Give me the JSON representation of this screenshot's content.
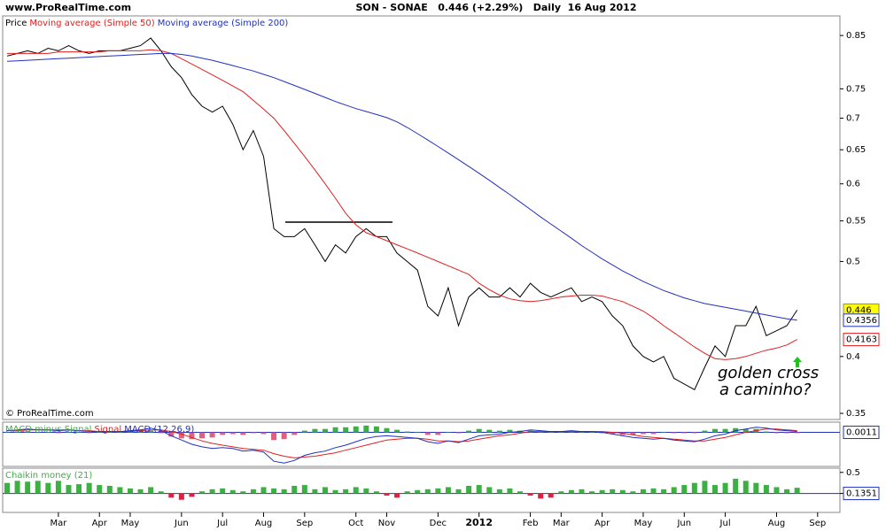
{
  "header": {
    "site": "www.ProRealTime.com",
    "quote": "SON - SONAE   0.446 (+2.29%)   Daily  16 Aug 2012",
    "copyright": "© ProRealTime.com"
  },
  "chart_data": [
    {
      "type": "line",
      "log_scale": true,
      "grid": false,
      "annotations": [
        "golden cross",
        "a caminho?"
      ],
      "categories": [
        null,
        null,
        null,
        null,
        null,
        "Mar",
        null,
        null,
        null,
        "Apr",
        null,
        null,
        "May",
        null,
        null,
        null,
        null,
        "Jun",
        null,
        null,
        null,
        "Jul",
        null,
        null,
        null,
        "Aug",
        null,
        null,
        null,
        "Sep",
        null,
        null,
        null,
        null,
        "Oct",
        null,
        null,
        "Nov",
        null,
        null,
        null,
        null,
        "Dec",
        null,
        null,
        null,
        "2012",
        null,
        null,
        null,
        null,
        "Feb",
        null,
        null,
        "Mar",
        null,
        null,
        null,
        "Apr",
        null,
        null,
        null,
        "May",
        null,
        null,
        null,
        "Jun",
        null,
        null,
        null,
        "Jul",
        null,
        null,
        null,
        null,
        "Aug",
        null,
        null,
        null,
        "Sep"
      ],
      "ylim": [
        0.345,
        0.89
      ],
      "yticks": [
        0.35,
        0.4,
        0.5,
        0.55,
        0.6,
        0.65,
        0.7,
        0.75,
        0.85
      ],
      "series": [
        {
          "name": "Price",
          "color": "#000000",
          "values": [
            0.81,
            0.815,
            0.82,
            0.815,
            0.825,
            0.82,
            0.83,
            0.82,
            0.815,
            0.82,
            0.82,
            0.82,
            0.825,
            0.83,
            0.845,
            0.82,
            0.79,
            0.77,
            0.74,
            0.72,
            0.71,
            0.72,
            0.69,
            0.65,
            0.68,
            0.64,
            0.54,
            0.53,
            0.53,
            0.54,
            0.52,
            0.5,
            0.52,
            0.51,
            0.53,
            0.54,
            0.53,
            0.53,
            0.51,
            0.5,
            0.49,
            0.45,
            0.44,
            0.47,
            0.43,
            0.46,
            0.47,
            0.46,
            0.46,
            0.47,
            0.46,
            0.475,
            0.465,
            0.46,
            0.465,
            0.47,
            0.455,
            0.46,
            0.455,
            0.44,
            0.43,
            0.41,
            0.4,
            0.395,
            0.4,
            0.38,
            0.375,
            0.37,
            0.39,
            0.41,
            0.4,
            0.43,
            0.43,
            0.45,
            0.42,
            0.425,
            0.43,
            0.446,
            null,
            null
          ]
        },
        {
          "name": "Moving average (Simple 50)",
          "color": "#e02020",
          "values": [
            0.815,
            0.815,
            0.815,
            0.815,
            0.815,
            0.818,
            0.818,
            0.818,
            0.818,
            0.818,
            0.82,
            0.82,
            0.82,
            0.82,
            0.822,
            0.82,
            0.815,
            0.805,
            0.795,
            0.785,
            0.775,
            0.765,
            0.755,
            0.745,
            0.73,
            0.715,
            0.7,
            0.68,
            0.66,
            0.64,
            0.62,
            0.6,
            0.58,
            0.56,
            0.545,
            0.535,
            0.53,
            0.525,
            0.52,
            0.515,
            0.51,
            0.505,
            0.5,
            0.495,
            0.49,
            0.485,
            0.475,
            0.468,
            0.462,
            0.458,
            0.456,
            0.455,
            0.456,
            0.458,
            0.46,
            0.461,
            0.462,
            0.462,
            0.461,
            0.458,
            0.455,
            0.45,
            0.445,
            0.438,
            0.43,
            0.423,
            0.416,
            0.409,
            0.403,
            0.398,
            0.397,
            0.398,
            0.4,
            0.403,
            0.406,
            0.408,
            0.411,
            0.4163,
            null,
            null
          ]
        },
        {
          "name": "Moving average (Simple 200)",
          "color": "#2030c0",
          "values": [
            0.8,
            0.801,
            0.802,
            0.803,
            0.804,
            0.805,
            0.806,
            0.807,
            0.808,
            0.809,
            0.81,
            0.811,
            0.812,
            0.813,
            0.814,
            0.815,
            0.815,
            0.813,
            0.81,
            0.806,
            0.802,
            0.797,
            0.792,
            0.787,
            0.782,
            0.776,
            0.77,
            0.763,
            0.756,
            0.749,
            0.742,
            0.735,
            0.728,
            0.722,
            0.716,
            0.711,
            0.706,
            0.701,
            0.694,
            0.685,
            0.675,
            0.665,
            0.655,
            0.645,
            0.635,
            0.625,
            0.615,
            0.605,
            0.595,
            0.585,
            0.575,
            0.565,
            0.555,
            0.546,
            0.537,
            0.528,
            0.519,
            0.511,
            0.503,
            0.496,
            0.489,
            0.483,
            0.477,
            0.472,
            0.467,
            0.463,
            0.459,
            0.456,
            0.453,
            0.451,
            0.449,
            0.447,
            0.445,
            0.443,
            0.441,
            0.439,
            0.437,
            0.4356,
            null,
            null
          ]
        }
      ]
    },
    {
      "type": "line",
      "ylim": [
        -0.04,
        0.012
      ],
      "series": [
        {
          "name": "MACD minus Signal",
          "type": "bar",
          "color": "#3cb043",
          "negative_color": "#e06080",
          "values": [
            0,
            0.001,
            0.001,
            0,
            0,
            -0.001,
            0,
            0,
            -0.001,
            0,
            0,
            0,
            0.001,
            0.001,
            0.002,
            -0.001,
            -0.005,
            -0.007,
            -0.008,
            -0.007,
            -0.006,
            -0.003,
            -0.002,
            -0.003,
            -0.001,
            -0.002,
            -0.009,
            -0.008,
            -0.003,
            0.002,
            0.004,
            0.004,
            0.006,
            0.006,
            0.007,
            0.008,
            0.007,
            0.005,
            0.003,
            0.001,
            0,
            -0.003,
            -0.003,
            0,
            -0.001,
            0.002,
            0.004,
            0.003,
            0.002,
            0.003,
            0.002,
            0.002,
            0.001,
            0,
            0,
            0.001,
            0,
            0,
            -0.001,
            -0.002,
            -0.003,
            -0.003,
            -0.002,
            -0.002,
            0,
            -0.001,
            -0.001,
            -0.001,
            0.002,
            0.004,
            0.004,
            0.005,
            0.004,
            0.004,
            0.001,
            -0.001,
            -0.001,
            -0.0009,
            null,
            null
          ]
        },
        {
          "name": "Signal",
          "color": "#e02020",
          "values": [
            0.002,
            0.002,
            0.003,
            0.003,
            0.003,
            0.003,
            0.003,
            0.002,
            0.002,
            0.001,
            0.001,
            0.001,
            0.001,
            0.002,
            0.003,
            0.003,
            0.001,
            -0.002,
            -0.006,
            -0.01,
            -0.013,
            -0.015,
            -0.017,
            -0.019,
            -0.02,
            -0.021,
            -0.025,
            -0.028,
            -0.03,
            -0.029,
            -0.028,
            -0.026,
            -0.024,
            -0.021,
            -0.018,
            -0.015,
            -0.012,
            -0.009,
            -0.008,
            -0.007,
            -0.007,
            -0.008,
            -0.01,
            -0.01,
            -0.011,
            -0.01,
            -0.008,
            -0.006,
            -0.004,
            -0.003,
            -0.001,
            0.001,
            0.001,
            0.001,
            0.001,
            0.001,
            0.001,
            0.001,
            0.001,
            0,
            -0.001,
            -0.003,
            -0.005,
            -0.006,
            -0.007,
            -0.008,
            -0.009,
            -0.01,
            -0.01,
            -0.008,
            -0.006,
            -0.003,
            0,
            0.002,
            0.004,
            0.004,
            0.003,
            0.002,
            null,
            null
          ]
        },
        {
          "name": "MACD (12,26,9)",
          "color": "#2030c0",
          "values": [
            0.002,
            0.003,
            0.004,
            0.003,
            0.003,
            0.002,
            0.003,
            0.002,
            0.001,
            0.001,
            0.001,
            0.001,
            0.002,
            0.003,
            0.005,
            0.002,
            -0.004,
            -0.009,
            -0.014,
            -0.017,
            -0.019,
            -0.018,
            -0.019,
            -0.022,
            -0.021,
            -0.023,
            -0.034,
            -0.036,
            -0.033,
            -0.027,
            -0.024,
            -0.022,
            -0.018,
            -0.015,
            -0.011,
            -0.007,
            -0.005,
            -0.004,
            -0.005,
            -0.006,
            -0.007,
            -0.011,
            -0.013,
            -0.01,
            -0.012,
            -0.008,
            -0.004,
            -0.003,
            -0.002,
            0,
            0.001,
            0.003,
            0.002,
            0.001,
            0.001,
            0.002,
            0.001,
            0.001,
            0,
            -0.002,
            -0.004,
            -0.006,
            -0.007,
            -0.008,
            -0.007,
            -0.009,
            -0.01,
            -0.011,
            -0.008,
            -0.004,
            -0.002,
            0.002,
            0.004,
            0.006,
            0.005,
            0.003,
            0.002,
            0.0011,
            null,
            null
          ]
        }
      ]
    },
    {
      "type": "bar",
      "ylim": [
        -0.45,
        0.6
      ],
      "yticks": [
        0,
        0.5
      ],
      "series": [
        {
          "name": "Chaikin money (21)",
          "color": "#3cb043",
          "negative_color": "#e02040",
          "values": [
            0.25,
            0.3,
            0.28,
            0.3,
            0.25,
            0.3,
            0.2,
            0.22,
            0.25,
            0.2,
            0.18,
            0.15,
            0.12,
            0.1,
            0.15,
            0.05,
            -0.1,
            -0.15,
            -0.08,
            0.05,
            0.1,
            0.12,
            0.08,
            0.05,
            0.1,
            0.15,
            0.12,
            0.1,
            0.18,
            0.2,
            0.1,
            0.15,
            0.08,
            0.1,
            0.15,
            0.12,
            0.05,
            -0.05,
            -0.1,
            0.05,
            0.08,
            0.1,
            0.12,
            0.15,
            0.1,
            0.18,
            0.2,
            0.15,
            0.1,
            0.12,
            0.05,
            -0.05,
            -0.12,
            -0.1,
            0.05,
            0.08,
            0.1,
            0.05,
            0.08,
            0.1,
            0.08,
            0.05,
            0.1,
            0.12,
            0.1,
            0.15,
            0.2,
            0.25,
            0.3,
            0.2,
            0.25,
            0.35,
            0.3,
            0.25,
            0.2,
            0.15,
            0.1,
            0.1351,
            null,
            null
          ]
        }
      ]
    }
  ]
}
